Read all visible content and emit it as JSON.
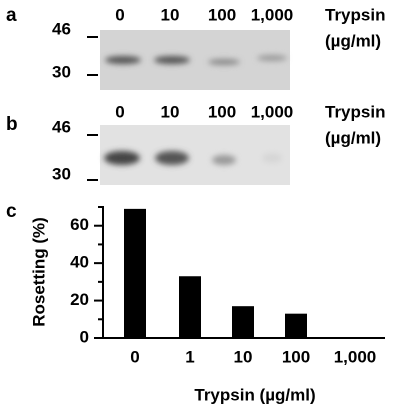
{
  "panels": {
    "a": {
      "label": "a",
      "lanes": [
        "0",
        "10",
        "100",
        "1,000"
      ],
      "markers": [
        "46",
        "30"
      ],
      "reagent": "Trypsin",
      "unit": "(µg/ml)"
    },
    "b": {
      "label": "b",
      "lanes": [
        "0",
        "10",
        "100",
        "1,000"
      ],
      "markers": [
        "46",
        "30"
      ],
      "reagent": "Trypsin",
      "unit": "(µg/ml)"
    },
    "c": {
      "label": "c"
    }
  },
  "chart_data": {
    "type": "bar",
    "x_label": "Trypsin (µg/ml)",
    "y_label": "Rosetting (%)",
    "categories": [
      "0",
      "1",
      "10",
      "100",
      "1,000"
    ],
    "values": [
      69,
      33,
      17,
      13,
      0
    ],
    "color": "#000000",
    "ylim": [
      0,
      70
    ],
    "yticks": [
      0,
      20,
      40,
      60
    ],
    "yminorticks": [
      10,
      30,
      50,
      70
    ]
  }
}
